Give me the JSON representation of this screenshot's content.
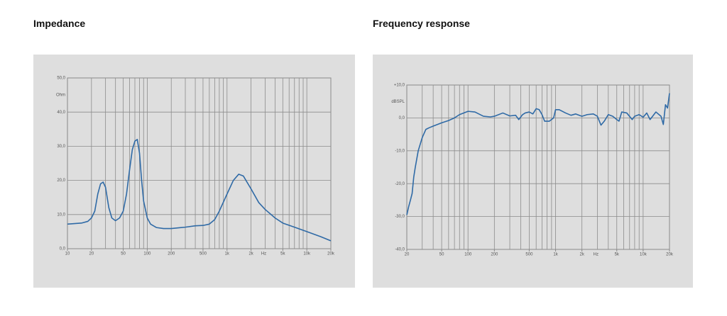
{
  "chart_data": [
    {
      "type": "line",
      "title": "Impedance",
      "y_label": "Ohm",
      "x_unit": "Hz",
      "log_x": true,
      "grid": true,
      "color": "#2f6aa6",
      "xlim": [
        10,
        20000
      ],
      "ylim": [
        0,
        50
      ],
      "xticks": [
        10,
        20,
        50,
        100,
        200,
        500,
        {
          "value": 1000,
          "label": "1k"
        },
        {
          "value": 2000,
          "label": "2k"
        },
        {
          "value": 5000,
          "label": "5k"
        },
        {
          "value": 10000,
          "label": "10k"
        },
        {
          "value": 20000,
          "label": "20k"
        }
      ],
      "yticks": [
        {
          "value": 0,
          "label": "0,0"
        },
        {
          "value": 10,
          "label": "10,0"
        },
        {
          "value": 20,
          "label": "20,0"
        },
        {
          "value": 30,
          "label": "30,0"
        },
        {
          "value": 40,
          "label": "40,0"
        },
        {
          "value": 50,
          "label": "50,0"
        }
      ],
      "xgrid": [
        20,
        30,
        40,
        50,
        60,
        70,
        80,
        90,
        100,
        200,
        300,
        400,
        500,
        600,
        700,
        800,
        900,
        1000,
        2000,
        3000,
        4000,
        5000,
        6000,
        7000,
        8000,
        9000,
        10000,
        20000
      ],
      "x": [
        10,
        15,
        18,
        20,
        22,
        24,
        26,
        28,
        30,
        33,
        36,
        40,
        45,
        50,
        55,
        60,
        65,
        70,
        75,
        80,
        85,
        90,
        100,
        110,
        130,
        160,
        200,
        300,
        400,
        500,
        600,
        700,
        800,
        1000,
        1200,
        1400,
        1600,
        2000,
        2500,
        3000,
        4000,
        5000,
        7000,
        10000,
        15000,
        20000
      ],
      "values": [
        7.2,
        7.5,
        8,
        9,
        11,
        16,
        19,
        19.5,
        18,
        12,
        9,
        8.2,
        9,
        11,
        16,
        23,
        29,
        31.5,
        32,
        28,
        20,
        14,
        9,
        7.2,
        6.2,
        5.9,
        5.9,
        6.3,
        6.7,
        6.8,
        7.2,
        8.5,
        11,
        16,
        20,
        21.8,
        21.3,
        17.5,
        13.5,
        11.5,
        9,
        7.5,
        6.3,
        5,
        3.5,
        2.3
      ]
    },
    {
      "type": "line",
      "title": "Frequency response",
      "y_label": "dBSPL",
      "x_unit": "Hz",
      "log_x": true,
      "grid": true,
      "color": "#2f6aa6",
      "xlim": [
        20,
        20000
      ],
      "ylim": [
        -40,
        10
      ],
      "xticks": [
        20,
        50,
        100,
        200,
        500,
        {
          "value": 1000,
          "label": "1k"
        },
        {
          "value": 2000,
          "label": "2k"
        },
        {
          "value": 5000,
          "label": "5k"
        },
        {
          "value": 10000,
          "label": "10k"
        },
        {
          "value": 20000,
          "label": "20k"
        }
      ],
      "yticks": [
        {
          "value": -40,
          "label": "-40,0"
        },
        {
          "value": -30,
          "label": "-30,0"
        },
        {
          "value": -20,
          "label": "-20,0"
        },
        {
          "value": -10,
          "label": "-10,0"
        },
        {
          "value": 0,
          "label": "0,0"
        },
        {
          "value": 10,
          "label": "+10,0"
        }
      ],
      "xgrid": [
        30,
        40,
        50,
        60,
        70,
        80,
        90,
        100,
        200,
        300,
        400,
        500,
        600,
        700,
        800,
        900,
        1000,
        2000,
        3000,
        4000,
        5000,
        6000,
        7000,
        8000,
        9000,
        10000,
        20000
      ],
      "x": [
        20,
        21,
        22,
        23,
        24,
        25,
        27,
        30,
        33,
        36,
        40,
        50,
        60,
        70,
        80,
        100,
        120,
        150,
        180,
        200,
        250,
        300,
        350,
        380,
        420,
        450,
        500,
        550,
        600,
        650,
        700,
        750,
        850,
        950,
        1000,
        1100,
        1300,
        1500,
        1700,
        2000,
        2300,
        2700,
        3000,
        3300,
        3600,
        4000,
        4500,
        5000,
        5300,
        5700,
        6500,
        7500,
        8000,
        9000,
        10000,
        11000,
        12000,
        14000,
        16000,
        17000,
        18000,
        19000,
        20000
      ],
      "values": [
        -29.5,
        -27,
        -25,
        -23,
        -18,
        -15,
        -10,
        -6,
        -3.5,
        -3,
        -2.5,
        -1.5,
        -0.8,
        0,
        1,
        2,
        1.8,
        0.5,
        0.3,
        0.5,
        1.5,
        0.6,
        0.8,
        -0.5,
        1,
        1.5,
        1.8,
        1.2,
        2.8,
        2.5,
        1,
        -1,
        -1,
        0,
        2.5,
        2.5,
        1.5,
        0.8,
        1.2,
        0.5,
        1,
        1.2,
        0.5,
        -2.2,
        -1,
        1,
        0.5,
        -0.5,
        -1,
        1.8,
        1.5,
        -0.5,
        0.5,
        1,
        0.2,
        1.5,
        -0.5,
        1.8,
        0.5,
        -2,
        4,
        3,
        7.5
      ]
    }
  ]
}
